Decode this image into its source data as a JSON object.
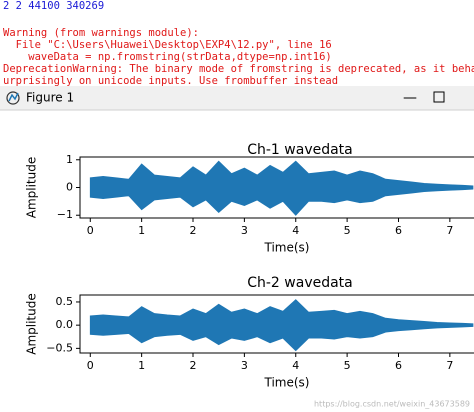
{
  "console": {
    "lines": [
      {
        "text": "2 2 44100 340269",
        "color": "#1a1ad6"
      },
      {
        "text": "Warning (from warnings module):",
        "color": "#e01818"
      },
      {
        "text": "  File \"C:\\Users\\Huawei\\Desktop\\EXP4\\12.py\", line 16",
        "color": "#e01818"
      },
      {
        "text": "    waveData = np.fromstring(strData,dtype=np.int16)",
        "color": "#e01818"
      },
      {
        "text": "DeprecationWarning: The binary mode of fromstring is deprecated, as it behaves s",
        "color": "#e01818"
      },
      {
        "text": "urprisingly on unicode inputs. Use frombuffer instead",
        "color": "#e01818"
      }
    ]
  },
  "window": {
    "title": "Figure 1"
  },
  "watermark": "https://blog.csdn.net/weixin_43673589",
  "chart_data": [
    {
      "type": "band",
      "title": "Ch-1 wavedata",
      "x_label": "Time(s)",
      "y_label": "Amplitude",
      "x": [
        0,
        0.25,
        0.5,
        0.75,
        1,
        1.25,
        1.5,
        1.75,
        2,
        2.25,
        2.5,
        2.75,
        3,
        3.25,
        3.5,
        3.75,
        4,
        4.25,
        4.5,
        4.75,
        5,
        5.25,
        5.5,
        5.75,
        6,
        6.25,
        6.5,
        6.75,
        7,
        7.25,
        7.45
      ],
      "series": [
        {
          "color": "#1f77b4",
          "values": [
            0.35,
            0.4,
            0.35,
            0.3,
            0.85,
            0.45,
            0.4,
            0.35,
            0.75,
            0.45,
            0.95,
            0.5,
            0.7,
            0.45,
            0.8,
            0.55,
            0.95,
            0.5,
            0.55,
            0.6,
            0.45,
            0.6,
            0.5,
            0.3,
            0.25,
            0.2,
            0.15,
            0.12,
            0.1,
            0.08,
            0.06
          ]
        },
        {
          "color": "#1f77b4",
          "values": [
            -0.35,
            -0.4,
            -0.35,
            -0.3,
            -0.8,
            -0.45,
            -0.4,
            -0.35,
            -0.7,
            -0.45,
            -0.9,
            -0.5,
            -0.65,
            -0.45,
            -0.75,
            -0.5,
            -1.0,
            -0.5,
            -0.5,
            -0.55,
            -0.45,
            -0.55,
            -0.5,
            -0.3,
            -0.25,
            -0.2,
            -0.15,
            -0.12,
            -0.1,
            -0.08,
            -0.06
          ]
        }
      ],
      "xlim": [
        -0.2,
        7.47
      ],
      "ylim": [
        -1.1,
        1.1
      ],
      "xticks": [
        0,
        1,
        2,
        3,
        4,
        5,
        6,
        7
      ],
      "yticks": [
        {
          "value": -1,
          "label": "−1"
        },
        0,
        1
      ]
    },
    {
      "type": "band",
      "title": "Ch-2 wavedata",
      "x_label": "Time(s)",
      "y_label": "Amplitude",
      "x": [
        0,
        0.25,
        0.5,
        0.75,
        1,
        1.25,
        1.5,
        1.75,
        2,
        2.25,
        2.5,
        2.75,
        3,
        3.25,
        3.5,
        3.75,
        4,
        4.25,
        4.5,
        4.75,
        5,
        5.25,
        5.5,
        5.75,
        6,
        6.25,
        6.5,
        6.75,
        7,
        7.25,
        7.45
      ],
      "series": [
        {
          "color": "#1f77b4",
          "values": [
            0.2,
            0.22,
            0.2,
            0.18,
            0.4,
            0.25,
            0.22,
            0.2,
            0.35,
            0.25,
            0.45,
            0.28,
            0.35,
            0.25,
            0.4,
            0.3,
            0.55,
            0.28,
            0.3,
            0.32,
            0.25,
            0.3,
            0.25,
            0.15,
            0.12,
            0.1,
            0.08,
            0.06,
            0.05,
            0.04,
            0.03
          ]
        },
        {
          "color": "#1f77b4",
          "values": [
            -0.2,
            -0.22,
            -0.2,
            -0.18,
            -0.38,
            -0.25,
            -0.22,
            -0.2,
            -0.33,
            -0.25,
            -0.42,
            -0.28,
            -0.33,
            -0.25,
            -0.38,
            -0.28,
            -0.55,
            -0.28,
            -0.28,
            -0.3,
            -0.25,
            -0.28,
            -0.25,
            -0.15,
            -0.12,
            -0.1,
            -0.08,
            -0.06,
            -0.05,
            -0.04,
            -0.03
          ]
        }
      ],
      "xlim": [
        -0.2,
        7.47
      ],
      "ylim": [
        -0.6,
        0.65
      ],
      "xticks": [
        0,
        1,
        2,
        3,
        4,
        5,
        6,
        7
      ],
      "yticks": [
        {
          "value": -0.5,
          "label": "−0.5"
        },
        {
          "value": 0,
          "label": "0.0"
        },
        0.5
      ]
    }
  ]
}
